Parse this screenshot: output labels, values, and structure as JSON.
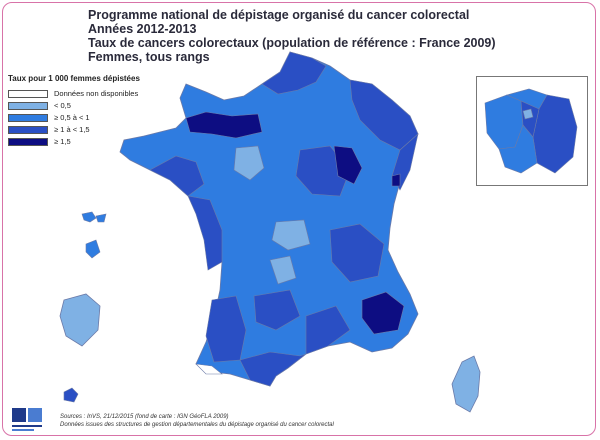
{
  "title": {
    "line1": "Programme national de dépistage organisé du cancer colorectal",
    "line2": "Années 2012-2013",
    "line3": "Taux de cancers colorectaux (population de référence : France 2009)",
    "line4": "Femmes, tous rangs"
  },
  "legend": {
    "title": "Taux pour 1 000 femmes dépistées",
    "items": [
      {
        "label": "Données non disponibles",
        "color": "#ffffff"
      },
      {
        "label": "< 0,5",
        "color": "#7fb1e4"
      },
      {
        "label": "≥ 0,5 à < 1",
        "color": "#2f7ce0"
      },
      {
        "label": "≥ 1 à < 1,5",
        "color": "#2a4fc4"
      },
      {
        "label": "≥ 1,5",
        "color": "#0d0d82"
      }
    ]
  },
  "sources": {
    "line1": "Sources : InVS, 21/12/2015 (fond de carte : IGN GéoFLA 2009)",
    "line2": "Données issues des structures de gestion départementales du dépistage organisé du cancer colorectal"
  }
}
